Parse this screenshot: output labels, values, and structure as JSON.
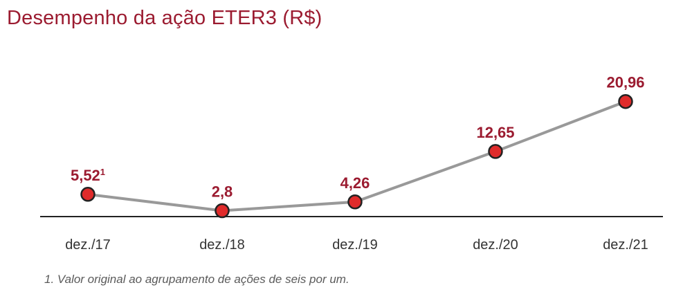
{
  "title": "Desempenho da ação ETER3 (R$)",
  "footnote": "1. Valor original ao agrupamento de ações de seis por um.",
  "chart_data": {
    "type": "line",
    "title": "Desempenho da ação ETER3 (R$)",
    "xlabel": "",
    "ylabel": "",
    "categories": [
      "dez./17",
      "dez./18",
      "dez./19",
      "dez./20",
      "dez./21"
    ],
    "series": [
      {
        "values": [
          5.52,
          2.8,
          4.26,
          12.65,
          20.96
        ],
        "labels": [
          "5,52",
          "2,8",
          "4,26",
          "12,65",
          "20,96"
        ],
        "superscripts": [
          "1",
          "",
          "",
          "",
          ""
        ]
      }
    ],
    "ylim": [
      0,
      25
    ],
    "grid": false,
    "legend": "none",
    "colors": {
      "title": "#9b1b30",
      "label": "#9b1b30",
      "line": "#999999",
      "marker_fill": "#e02b2b",
      "marker_stroke": "#222222",
      "axis": "#222222",
      "tick": "#333333"
    }
  }
}
